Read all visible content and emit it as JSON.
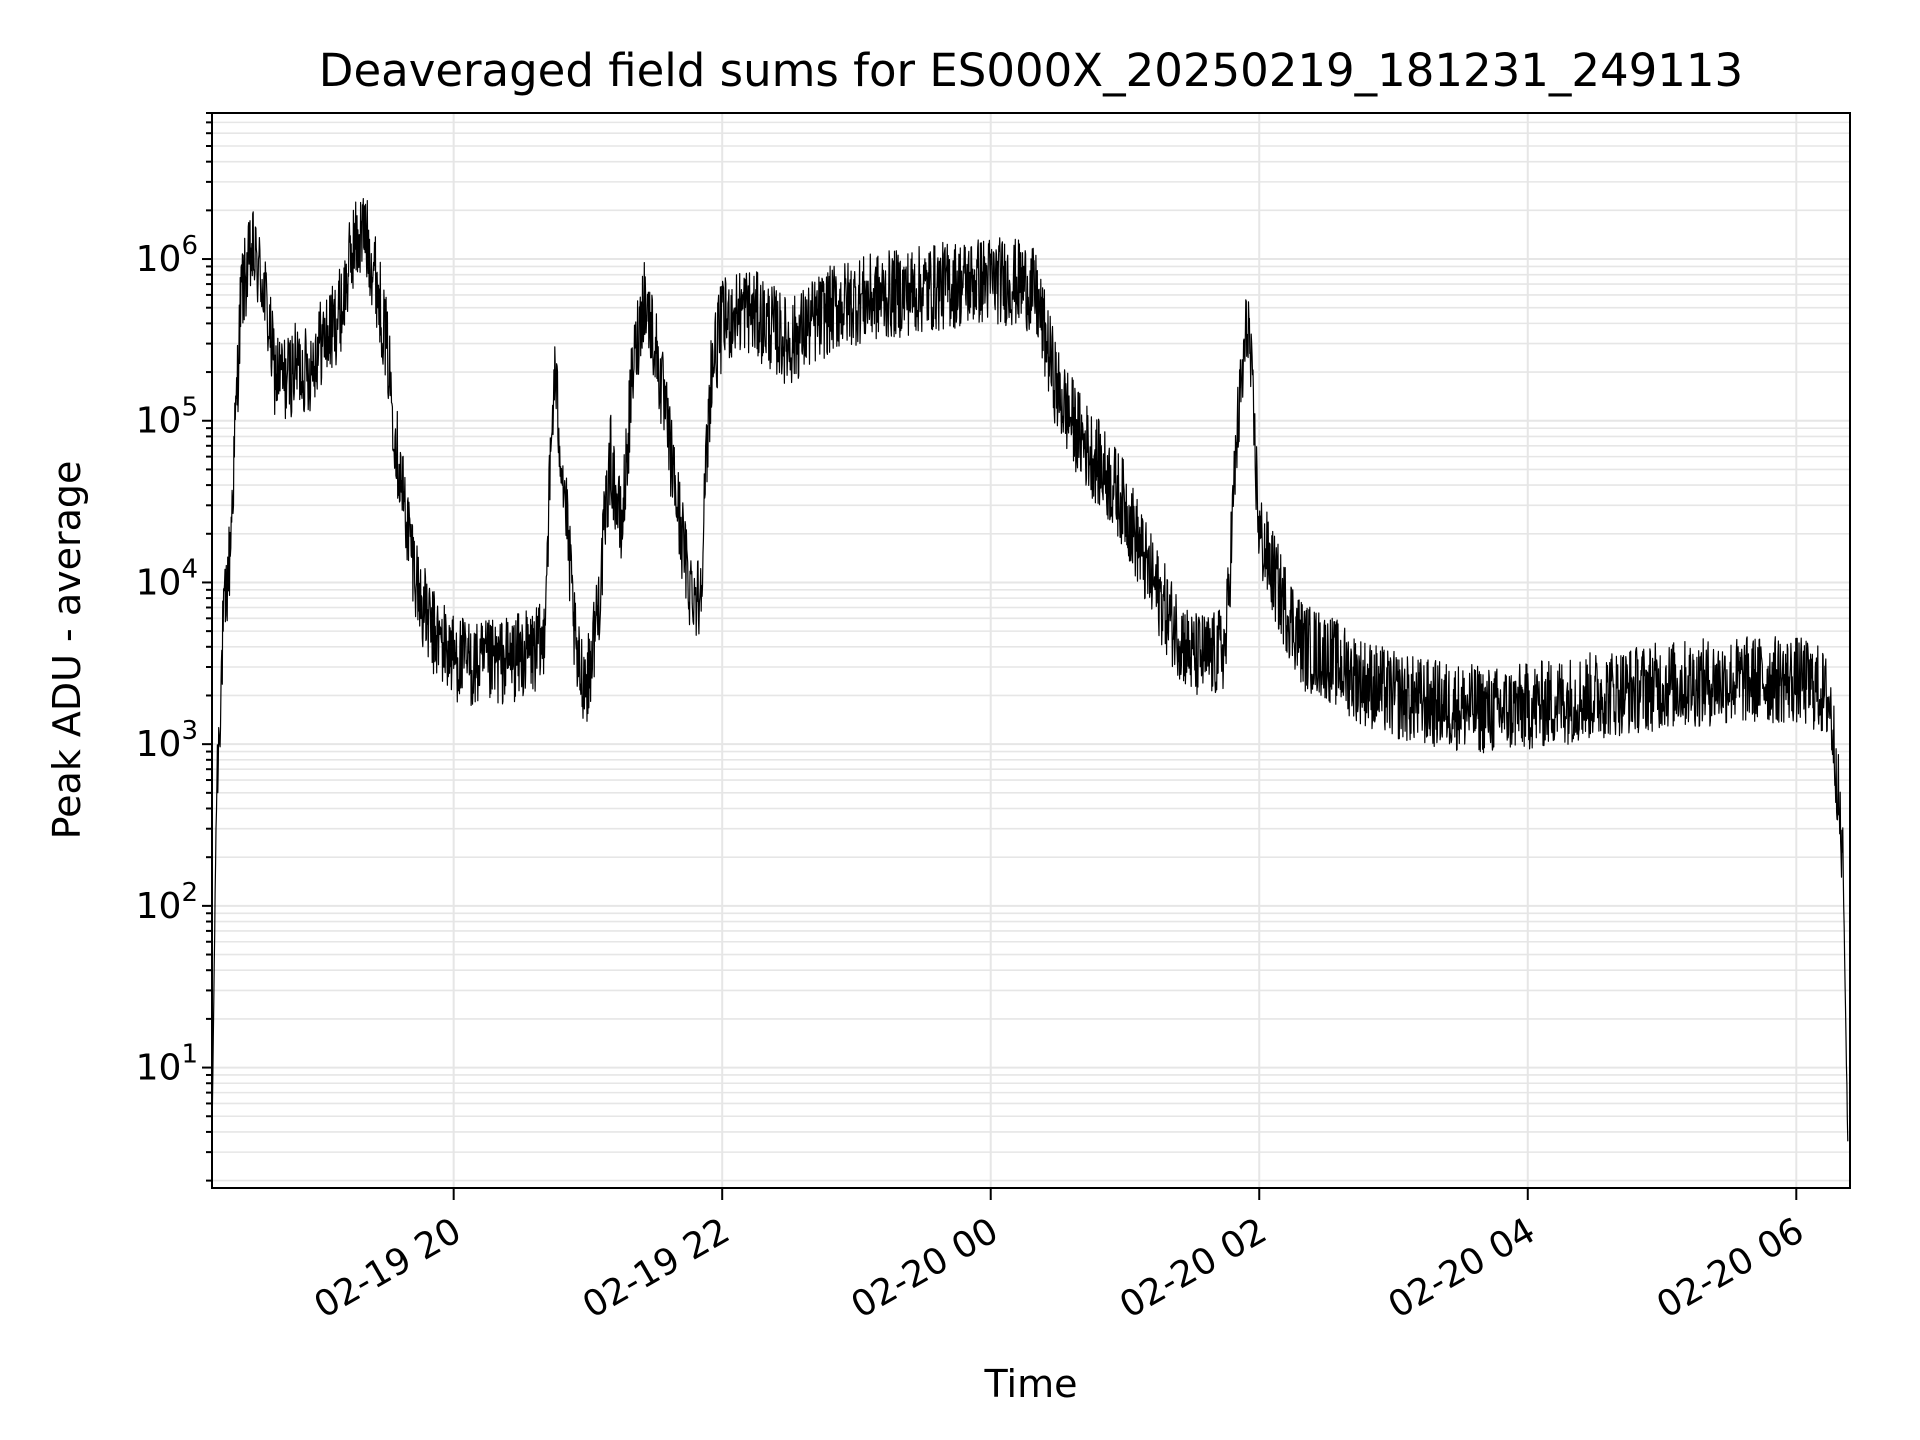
{
  "chart_data": {
    "type": "line",
    "title": "Deaveraged field sums for ES000X_20250219_181231_249113",
    "xlabel": "Time",
    "ylabel": "Peak ADU - average",
    "yscale": "log",
    "ylim": [
      1.8,
      8000000
    ],
    "xlim": [
      "2025-02-19 18:12",
      "2025-02-20 06:24"
    ],
    "grid": true,
    "line_color": "#000000",
    "grid_color": "#e6e6e6",
    "x_ticks": [
      {
        "value": "2025-02-19 20:00",
        "label": "02-19 20"
      },
      {
        "value": "2025-02-19 22:00",
        "label": "02-19 22"
      },
      {
        "value": "2025-02-20 00:00",
        "label": "02-20 00"
      },
      {
        "value": "2025-02-20 02:00",
        "label": "02-20 02"
      },
      {
        "value": "2025-02-20 04:00",
        "label": "02-20 04"
      },
      {
        "value": "2025-02-20 06:00",
        "label": "02-20 06"
      }
    ],
    "y_ticks": [
      {
        "value": 10,
        "base": "10",
        "exp": "1"
      },
      {
        "value": 100,
        "base": "10",
        "exp": "2"
      },
      {
        "value": 1000,
        "base": "10",
        "exp": "3"
      },
      {
        "value": 10000,
        "base": "10",
        "exp": "4"
      },
      {
        "value": 100000,
        "base": "10",
        "exp": "5"
      },
      {
        "value": 1000000,
        "base": "10",
        "exp": "6"
      }
    ],
    "series": [
      {
        "x": [
          "2025-02-19 18:12",
          "2025-02-19 18:14",
          "2025-02-19 18:17",
          "2025-02-19 18:20",
          "2025-02-19 18:25",
          "2025-02-19 18:30",
          "2025-02-19 18:35",
          "2025-02-19 18:40",
          "2025-02-19 18:45",
          "2025-02-19 18:50",
          "2025-02-19 18:55",
          "2025-02-19 19:00",
          "2025-02-19 19:05",
          "2025-02-19 19:10",
          "2025-02-19 19:15",
          "2025-02-19 19:20",
          "2025-02-19 19:25",
          "2025-02-19 19:30",
          "2025-02-19 19:35",
          "2025-02-19 19:40",
          "2025-02-19 19:45",
          "2025-02-19 19:50",
          "2025-02-19 20:00",
          "2025-02-19 20:10",
          "2025-02-19 20:20",
          "2025-02-19 20:30",
          "2025-02-19 20:40",
          "2025-02-19 20:45",
          "2025-02-19 20:50",
          "2025-02-19 20:55",
          "2025-02-19 21:00",
          "2025-02-19 21:05",
          "2025-02-19 21:10",
          "2025-02-19 21:15",
          "2025-02-19 21:20",
          "2025-02-19 21:25",
          "2025-02-19 21:30",
          "2025-02-19 21:35",
          "2025-02-19 21:40",
          "2025-02-19 21:45",
          "2025-02-19 21:50",
          "2025-02-19 21:55",
          "2025-02-19 22:00",
          "2025-02-19 22:10",
          "2025-02-19 22:20",
          "2025-02-19 22:30",
          "2025-02-19 22:40",
          "2025-02-19 22:50",
          "2025-02-19 23:00",
          "2025-02-19 23:15",
          "2025-02-19 23:30",
          "2025-02-19 23:45",
          "2025-02-20 00:00",
          "2025-02-20 00:15",
          "2025-02-20 00:20",
          "2025-02-20 00:25",
          "2025-02-20 00:30",
          "2025-02-20 00:40",
          "2025-02-20 00:50",
          "2025-02-20 01:00",
          "2025-02-20 01:10",
          "2025-02-20 01:20",
          "2025-02-20 01:30",
          "2025-02-20 01:40",
          "2025-02-20 01:45",
          "2025-02-20 01:50",
          "2025-02-20 01:55",
          "2025-02-20 02:00",
          "2025-02-20 02:10",
          "2025-02-20 02:20",
          "2025-02-20 02:30",
          "2025-02-20 02:45",
          "2025-02-20 03:00",
          "2025-02-20 03:15",
          "2025-02-20 03:30",
          "2025-02-20 03:45",
          "2025-02-20 04:00",
          "2025-02-20 04:20",
          "2025-02-20 04:40",
          "2025-02-20 05:00",
          "2025-02-20 05:20",
          "2025-02-20 05:40",
          "2025-02-20 06:00",
          "2025-02-20 06:10",
          "2025-02-20 06:15",
          "2025-02-20 06:18",
          "2025-02-20 06:21",
          "2025-02-20 06:23"
        ],
        "y": [
          3.5,
          500,
          5000,
          15000,
          600000,
          1100000,
          700000,
          200000,
          180000,
          220000,
          200000,
          300000,
          350000,
          500000,
          1200000,
          1500000,
          800000,
          300000,
          60000,
          20000,
          8000,
          5000,
          3500,
          3000,
          3200,
          3500,
          4000,
          200000,
          30000,
          3000,
          2500,
          8000,
          60000,
          20000,
          200000,
          600000,
          300000,
          100000,
          30000,
          10000,
          8000,
          200000,
          400000,
          500000,
          400000,
          300000,
          400000,
          500000,
          550000,
          600000,
          650000,
          700000,
          750000,
          700000,
          600000,
          300000,
          150000,
          80000,
          50000,
          30000,
          12000,
          6000,
          3500,
          3500,
          4000,
          80000,
          450000,
          20000,
          8000,
          4000,
          3500,
          2500,
          2000,
          1800,
          1700,
          1600,
          1700,
          1900,
          2100,
          2300,
          2400,
          2500,
          2500,
          2200,
          1800,
          700,
          150,
          3.5
        ]
      }
    ]
  }
}
